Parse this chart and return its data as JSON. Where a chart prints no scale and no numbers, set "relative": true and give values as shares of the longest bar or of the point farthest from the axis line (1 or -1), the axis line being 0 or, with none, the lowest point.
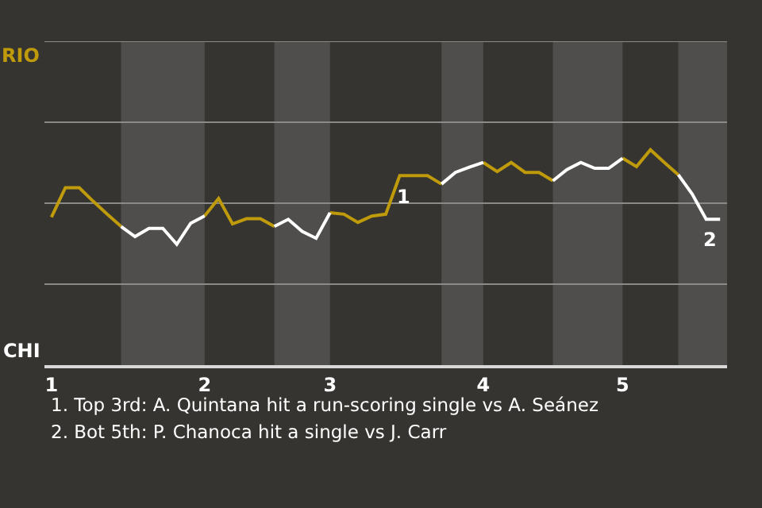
{
  "chart_data": {
    "type": "line",
    "relative": true,
    "categories": [
      "1",
      null,
      null,
      null,
      null,
      null,
      null,
      null,
      null,
      null,
      null,
      "2",
      null,
      null,
      null,
      null,
      null,
      null,
      null,
      null,
      "3",
      null,
      null,
      null,
      null,
      null,
      null,
      null,
      null,
      null,
      null,
      "4",
      null,
      null,
      null,
      null,
      null,
      null,
      null,
      null,
      null,
      "5",
      null,
      null,
      null,
      null,
      null,
      null,
      null
    ],
    "marker": "none",
    "line_style": "solid",
    "series": [
      {
        "color": "#bf9b0b",
        "values": [
          0.687,
          0.824,
          0.824,
          0.761,
          0.701,
          0.644,
          null,
          null,
          null,
          null,
          null,
          0.693,
          0.774,
          0.656,
          0.68,
          0.68,
          0.644,
          null,
          null,
          null,
          0.708,
          0.701,
          0.663,
          0.692,
          0.701,
          0.88,
          0.88,
          0.88,
          0.841,
          null,
          null,
          0.941,
          0.899,
          0.941,
          0.895,
          0.895,
          0.856,
          null,
          null,
          null,
          null,
          0.961,
          0.922,
          1,
          0.941,
          0.884,
          null,
          null,
          null
        ]
      },
      {
        "color": "#ffffff",
        "values": [
          null,
          null,
          null,
          null,
          null,
          0.644,
          0.597,
          0.635,
          0.635,
          0.561,
          0.659,
          0.693,
          null,
          null,
          null,
          null,
          0.644,
          0.677,
          0.621,
          0.589,
          0.708,
          null,
          null,
          null,
          null,
          null,
          null,
          null,
          0.841,
          0.895,
          0.919,
          0.941,
          null,
          null,
          null,
          null,
          0.856,
          0.908,
          0.941,
          0.914,
          0.914,
          0.961,
          null,
          null,
          null,
          0.884,
          0.794,
          0.677,
          0.677
        ]
      }
    ],
    "ref_lines": [
      {
        "axis": "y",
        "value": 0.376,
        "color": "#8a8a88"
      },
      {
        "axis": "y",
        "value": 0.752,
        "color": "#8a8a88"
      },
      {
        "axis": "y",
        "value": 1.128,
        "color": "#8a8a88"
      },
      {
        "axis": "y",
        "value": 1.504,
        "color": "#8a8a88"
      }
    ],
    "annotations": [
      "RIO",
      "CHI",
      {
        "text": "1",
        "y": 0.88
      },
      {
        "text": "2",
        "y": 0.677
      },
      "1. Top 3rd: A. Quintana hit a run-scoring single vs A. Seánez",
      "2. Bot 5th: P. Chanoca hit a single vs J. Carr"
    ]
  }
}
